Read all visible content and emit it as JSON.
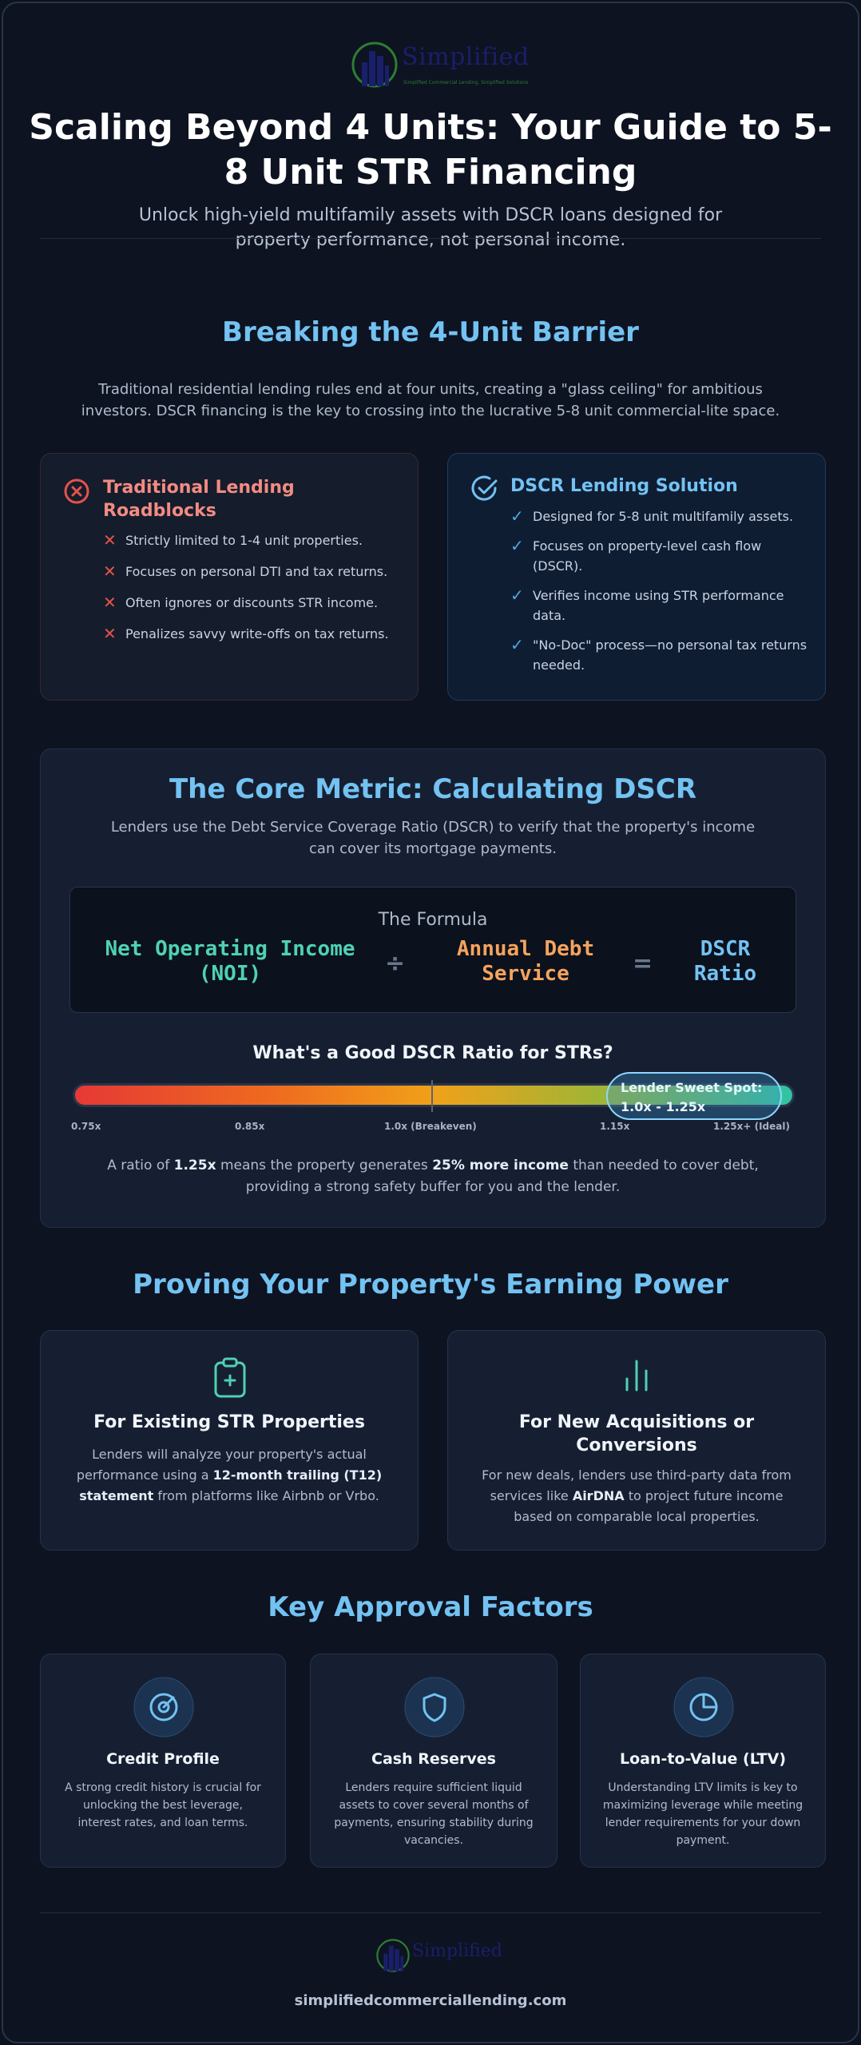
{
  "brand": {
    "name": "Simplified",
    "tagline": "Simplified Commercial Lending, Simplified Solutions",
    "url": "simplifiedcommerciallending.com"
  },
  "header": {
    "title": "Scaling Beyond 4 Units: Your Guide to 5-8 Unit STR Financing",
    "subtitle": "Unlock high-yield multifamily assets with DSCR loans designed for property performance, not personal income."
  },
  "barrier": {
    "title": "Breaking the 4-Unit Barrier",
    "intro": "Traditional residential lending rules end at four units, creating a \"glass ceiling\" for ambitious investors. DSCR financing is the key to crossing into the lucrative 5-8 unit commercial-lite space.",
    "traditional": {
      "heading": "Traditional Lending Roadblocks",
      "items": [
        "Strictly limited to 1-4 unit properties.",
        "Focuses on personal DTI and tax returns.",
        "Often ignores or discounts STR income.",
        "Penalizes savvy write-offs on tax returns."
      ]
    },
    "dscr": {
      "heading": "DSCR Lending Solution",
      "items": [
        "Designed for 5-8 unit multifamily assets.",
        "Focuses on property-level cash flow (DSCR).",
        "Verifies income using STR performance data.",
        "\"No-Doc\" process—no personal tax returns needed."
      ]
    }
  },
  "metric": {
    "title": "The Core Metric: Calculating DSCR",
    "intro": "Lenders use the Debt Service Coverage Ratio (DSCR) to verify that the property's income can cover its mortgage payments.",
    "formula_label": "The Formula",
    "noi": "Net Operating Income (NOI)",
    "divide": "÷",
    "debt": "Annual Debt Service",
    "equals": "=",
    "result": "DSCR Ratio",
    "scale_title": "What's a Good DSCR Ratio for STRs?",
    "ticks": [
      "0.75x",
      "0.85x",
      "1.0x (Breakeven)",
      "1.15x",
      "1.25x+ (Ideal)"
    ],
    "sweet_spot": "Lender Sweet Spot: 1.0x - 1.25x",
    "note_pre": "A ratio of ",
    "note_b1": "1.25x",
    "note_mid": " means the property generates ",
    "note_b2": "25% more income",
    "note_post": " than needed to cover debt, providing a strong safety buffer for you and the lender."
  },
  "earning": {
    "title": "Proving Your Property's Earning Power",
    "existing": {
      "heading": "For Existing STR Properties",
      "text_pre": "Lenders will analyze your property's actual performance using a ",
      "text_b": "12-month trailing (T12) statement",
      "text_post": " from platforms like Airbnb or Vrbo."
    },
    "new": {
      "heading": "For New Acquisitions or Conversions",
      "text_pre": "For new deals, lenders use third-party data from services like ",
      "text_b": "AirDNA",
      "text_post": " to project future income based on comparable local properties."
    }
  },
  "factors": {
    "title": "Key Approval Factors",
    "items": [
      {
        "title": "Credit Profile",
        "text": "A strong credit history is crucial for unlocking the best leverage, interest rates, and loan terms."
      },
      {
        "title": "Cash Reserves",
        "text": "Lenders require sufficient liquid assets to cover several months of payments, ensuring stability during vacancies."
      },
      {
        "title": "Loan-to-Value (LTV)",
        "text": "Understanding LTV limits is key to maximizing leverage while meeting lender requirements for your down payment."
      }
    ]
  },
  "colors": {
    "accent_blue": "#73c2f2",
    "accent_red": "#f28b82",
    "accent_teal": "#4fd1b5",
    "accent_orange": "#f5a35c"
  }
}
